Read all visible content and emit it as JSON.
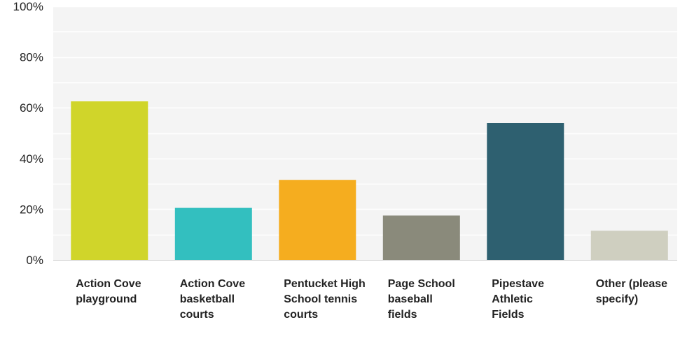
{
  "chart_data": {
    "type": "bar",
    "categories": [
      "Action Cove playground",
      "Action Cove basketball courts",
      "Pentucket High School tennis courts",
      "Page School baseball fields",
      "Pipestave Athletic Fields",
      "Other (please specify)"
    ],
    "values": [
      62.5,
      20.5,
      31.5,
      17.5,
      54,
      11.5
    ],
    "colors": [
      "#d0d52a",
      "#33bfbf",
      "#f5ad1f",
      "#8a8a7b",
      "#2e6070",
      "#cfcfc0"
    ],
    "ylim": [
      0,
      100
    ],
    "yticks": [
      "0%",
      "20%",
      "40%",
      "60%",
      "80%",
      "100%"
    ],
    "grid": true,
    "title": "",
    "xlabel": "",
    "ylabel": ""
  }
}
